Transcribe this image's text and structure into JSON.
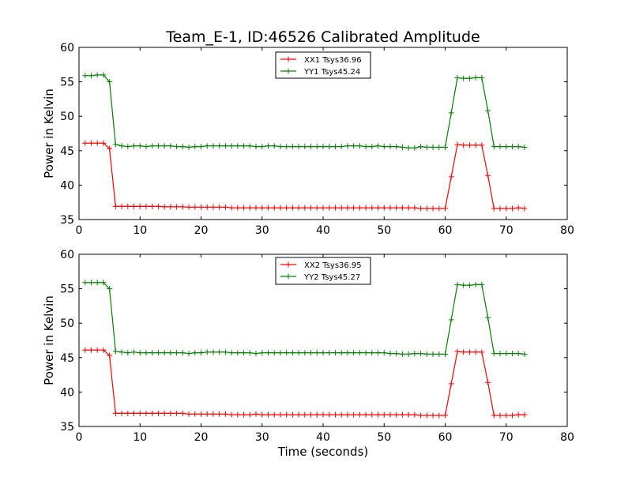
{
  "title": "Team_E-1, ID:46526 Calibrated Amplitude",
  "xlabel": "Time (seconds)",
  "colors": {
    "xx": "#ff0000",
    "yy": "#008000",
    "axis": "#000000",
    "background": "#ffffff"
  },
  "chart_data": [
    {
      "type": "line",
      "title": "Team_E-1, ID:46526 Calibrated Amplitude",
      "xlabel": "",
      "ylabel": "Power in Kelvin",
      "xlim": [
        0,
        80
      ],
      "ylim": [
        35,
        60
      ],
      "xticks": [
        "0",
        "10",
        "20",
        "30",
        "40",
        "50",
        "60",
        "70",
        "80"
      ],
      "yticks": [
        "35",
        "40",
        "45",
        "50",
        "55",
        "60"
      ],
      "grid": false,
      "legend_position": "top-center",
      "x": [
        1,
        2,
        3,
        4,
        5,
        6,
        7,
        8,
        9,
        10,
        11,
        12,
        13,
        14,
        15,
        16,
        17,
        18,
        19,
        20,
        21,
        22,
        23,
        24,
        25,
        26,
        27,
        28,
        29,
        30,
        31,
        32,
        33,
        34,
        35,
        36,
        37,
        38,
        39,
        40,
        41,
        42,
        43,
        44,
        45,
        46,
        47,
        48,
        49,
        50,
        51,
        52,
        53,
        54,
        55,
        56,
        57,
        58,
        59,
        60,
        61,
        62,
        63,
        64,
        65,
        66,
        67,
        68,
        69,
        70,
        71,
        72,
        73
      ],
      "series": [
        {
          "name": "XX1 Tsys36.96",
          "color": "#ff0000",
          "values": [
            46.1,
            46.1,
            46.1,
            46.1,
            45.3,
            36.9,
            36.9,
            36.9,
            36.9,
            36.9,
            36.9,
            36.9,
            36.9,
            36.85,
            36.85,
            36.85,
            36.85,
            36.8,
            36.8,
            36.8,
            36.8,
            36.8,
            36.8,
            36.8,
            36.7,
            36.7,
            36.7,
            36.7,
            36.7,
            36.7,
            36.7,
            36.7,
            36.7,
            36.7,
            36.7,
            36.7,
            36.7,
            36.7,
            36.7,
            36.7,
            36.7,
            36.7,
            36.7,
            36.7,
            36.7,
            36.7,
            36.7,
            36.7,
            36.7,
            36.7,
            36.7,
            36.7,
            36.7,
            36.7,
            36.7,
            36.6,
            36.6,
            36.6,
            36.6,
            36.6,
            41.2,
            45.9,
            45.8,
            45.8,
            45.8,
            45.8,
            41.4,
            36.6,
            36.6,
            36.6,
            36.6,
            36.7,
            36.6
          ]
        },
        {
          "name": "YY1 Tsys45.24",
          "color": "#008000",
          "values": [
            55.9,
            55.9,
            56.0,
            56.0,
            55.0,
            45.9,
            45.7,
            45.6,
            45.7,
            45.7,
            45.6,
            45.7,
            45.7,
            45.7,
            45.7,
            45.6,
            45.6,
            45.5,
            45.6,
            45.6,
            45.7,
            45.7,
            45.7,
            45.7,
            45.7,
            45.7,
            45.7,
            45.7,
            45.6,
            45.6,
            45.7,
            45.7,
            45.6,
            45.6,
            45.6,
            45.6,
            45.6,
            45.6,
            45.6,
            45.6,
            45.6,
            45.6,
            45.6,
            45.7,
            45.7,
            45.7,
            45.6,
            45.6,
            45.7,
            45.6,
            45.6,
            45.6,
            45.5,
            45.4,
            45.4,
            45.6,
            45.5,
            45.5,
            45.5,
            45.5,
            50.5,
            55.6,
            55.5,
            55.5,
            55.6,
            55.6,
            50.8,
            45.6,
            45.6,
            45.6,
            45.6,
            45.6,
            45.5
          ]
        }
      ]
    },
    {
      "type": "line",
      "title": "",
      "xlabel": "Time (seconds)",
      "ylabel": "Power in Kelvin",
      "xlim": [
        0,
        80
      ],
      "ylim": [
        35,
        60
      ],
      "xticks": [
        "0",
        "10",
        "20",
        "30",
        "40",
        "50",
        "60",
        "70",
        "80"
      ],
      "yticks": [
        "35",
        "40",
        "45",
        "50",
        "55",
        "60"
      ],
      "grid": false,
      "legend_position": "top-center",
      "x": [
        1,
        2,
        3,
        4,
        5,
        6,
        7,
        8,
        9,
        10,
        11,
        12,
        13,
        14,
        15,
        16,
        17,
        18,
        19,
        20,
        21,
        22,
        23,
        24,
        25,
        26,
        27,
        28,
        29,
        30,
        31,
        32,
        33,
        34,
        35,
        36,
        37,
        38,
        39,
        40,
        41,
        42,
        43,
        44,
        45,
        46,
        47,
        48,
        49,
        50,
        51,
        52,
        53,
        54,
        55,
        56,
        57,
        58,
        59,
        60,
        61,
        62,
        63,
        64,
        65,
        66,
        67,
        68,
        69,
        70,
        71,
        72,
        73
      ],
      "series": [
        {
          "name": "XX2 Tsys36.95",
          "color": "#ff0000",
          "values": [
            46.1,
            46.1,
            46.1,
            46.1,
            45.3,
            36.9,
            36.9,
            36.9,
            36.9,
            36.9,
            36.9,
            36.9,
            36.9,
            36.9,
            36.9,
            36.9,
            36.9,
            36.8,
            36.8,
            36.8,
            36.8,
            36.8,
            36.8,
            36.8,
            36.7,
            36.7,
            36.7,
            36.7,
            36.8,
            36.7,
            36.7,
            36.7,
            36.7,
            36.7,
            36.7,
            36.7,
            36.7,
            36.7,
            36.7,
            36.7,
            36.7,
            36.7,
            36.7,
            36.7,
            36.7,
            36.7,
            36.7,
            36.7,
            36.7,
            36.7,
            36.7,
            36.7,
            36.7,
            36.7,
            36.7,
            36.6,
            36.6,
            36.6,
            36.6,
            36.6,
            41.2,
            45.9,
            45.8,
            45.8,
            45.8,
            45.8,
            41.4,
            36.6,
            36.6,
            36.6,
            36.6,
            36.7,
            36.7
          ]
        },
        {
          "name": "YY2 Tsys45.27",
          "color": "#008000",
          "values": [
            55.9,
            55.9,
            55.9,
            55.9,
            55.0,
            45.9,
            45.8,
            45.7,
            45.8,
            45.7,
            45.7,
            45.7,
            45.7,
            45.7,
            45.7,
            45.7,
            45.7,
            45.6,
            45.7,
            45.7,
            45.8,
            45.8,
            45.8,
            45.8,
            45.7,
            45.7,
            45.7,
            45.7,
            45.6,
            45.7,
            45.7,
            45.7,
            45.7,
            45.7,
            45.7,
            45.7,
            45.7,
            45.7,
            45.7,
            45.7,
            45.7,
            45.7,
            45.7,
            45.7,
            45.7,
            45.7,
            45.7,
            45.7,
            45.7,
            45.7,
            45.6,
            45.6,
            45.5,
            45.5,
            45.6,
            45.6,
            45.5,
            45.5,
            45.5,
            45.5,
            50.5,
            55.6,
            55.5,
            55.5,
            55.6,
            55.6,
            50.8,
            45.6,
            45.6,
            45.6,
            45.6,
            45.6,
            45.5
          ]
        }
      ]
    }
  ]
}
